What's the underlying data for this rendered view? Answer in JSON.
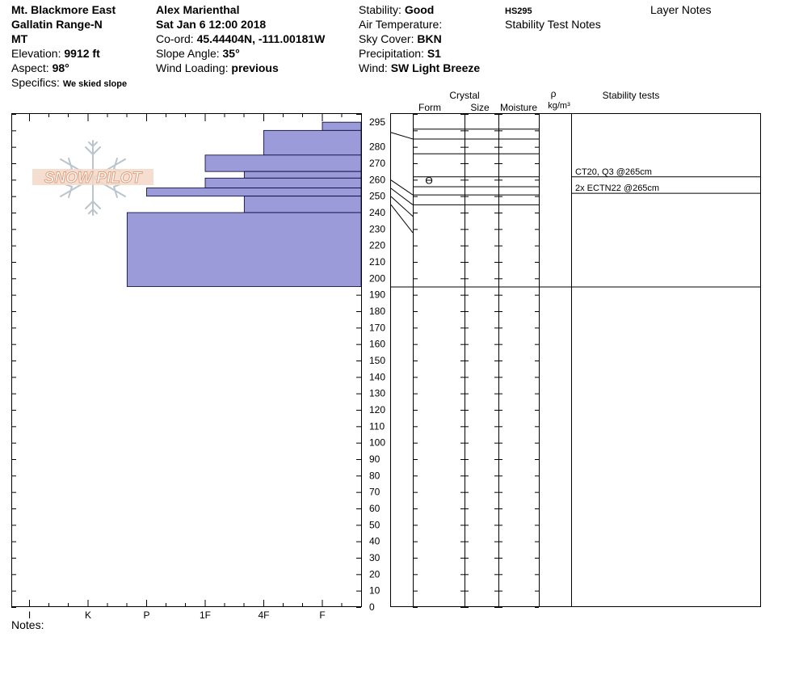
{
  "header": {
    "col1": [
      {
        "label": "Mt. Blackmore East",
        "value": ""
      },
      {
        "label": "Gallatin Range-N",
        "value": ""
      },
      {
        "label": "MT",
        "value": ""
      },
      {
        "label": "Elevation: ",
        "value": "9912 ft"
      },
      {
        "label": "Aspect: ",
        "value": "98°"
      },
      {
        "label": "Specifics: ",
        "value": "We skied slope"
      }
    ],
    "col2": [
      {
        "label": "Alex Marienthal",
        "value": ""
      },
      {
        "label": "Sat Jan 6 12:00 2018",
        "value": ""
      },
      {
        "label": "Co-ord: ",
        "value": "45.44404N, -111.00181W"
      },
      {
        "label": "Slope Angle: ",
        "value": "35°"
      },
      {
        "label": "Wind Loading: ",
        "value": "previous"
      }
    ],
    "col3": [
      {
        "label": "Stability: ",
        "value": "Good"
      },
      {
        "label": "Air Temperature:",
        "value": ""
      },
      {
        "label": "Sky Cover: ",
        "value": "BKN"
      },
      {
        "label": "Precipitation: ",
        "value": "S1"
      },
      {
        "label": "Wind:  ",
        "value": "SW Light Breeze"
      }
    ],
    "hs": "HS295",
    "stability_test_notes_label": "Stability Test Notes",
    "layer_notes_label": "Layer Notes"
  },
  "logo_text": "SNOW PILOT",
  "notes_label": "Notes:",
  "columns": {
    "crystal": "Crystal",
    "form": "Form",
    "size": "Size",
    "moisture": "Moisture",
    "rho": "ρ",
    "density_unit": "kg/m³",
    "stability_tests": "Stability tests"
  },
  "colors": {
    "bar_fill": "#9b9bd9",
    "bar_stroke": "#000033",
    "logo": "#e0a080",
    "flake": "#b9c4cc"
  },
  "chart_data": {
    "type": "bar",
    "title": "",
    "hardness_scale": [
      "I",
      "K",
      "P",
      "1F",
      "4F",
      "F"
    ],
    "ylim": [
      0,
      300
    ],
    "y_ticks": [
      0,
      10,
      20,
      30,
      40,
      50,
      60,
      70,
      80,
      90,
      100,
      110,
      120,
      130,
      140,
      150,
      160,
      170,
      180,
      190,
      200,
      210,
      220,
      230,
      240,
      250,
      260,
      270,
      280,
      295
    ],
    "layers": [
      {
        "top": 295,
        "bottom": 290,
        "hardness": "F"
      },
      {
        "top": 290,
        "bottom": 275,
        "hardness": "4F"
      },
      {
        "top": 275,
        "bottom": 265,
        "hardness": "1F"
      },
      {
        "top": 265,
        "bottom": 261,
        "hardness": "4F-"
      },
      {
        "top": 261,
        "bottom": 255,
        "hardness": "1F"
      },
      {
        "top": 255,
        "bottom": 250,
        "hardness": "P+"
      },
      {
        "top": 250,
        "bottom": 240,
        "hardness": "4F-"
      },
      {
        "top": 240,
        "bottom": 195,
        "hardness": "P-"
      }
    ],
    "hardness_value": {
      "F": 5,
      "4F": 4,
      "1F": 3,
      "4F-": 3.6667,
      "P+": 2.0,
      "P-": 1.6667
    },
    "crystal_forms": [
      {
        "depth": 260,
        "symbol": "ϴ"
      }
    ],
    "stability_tests": [
      {
        "text": "CT20, Q3 @265cm",
        "depth": 265
      },
      {
        "text": "2x ECTN22 @265cm",
        "depth": 265
      }
    ]
  }
}
